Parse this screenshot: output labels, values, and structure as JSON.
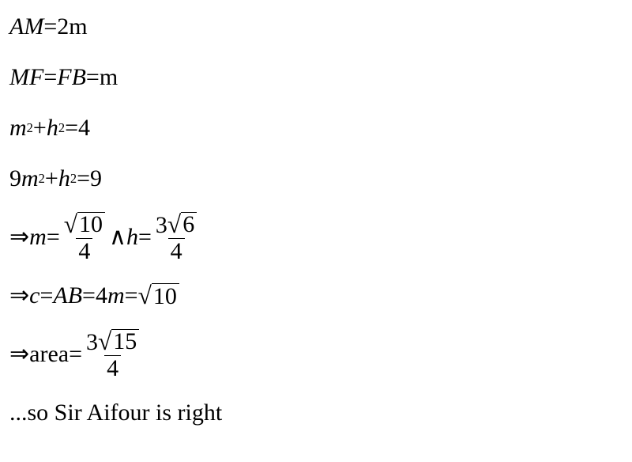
{
  "l1": {
    "lhs": "AM",
    "eq": "=",
    "rhs_num": "2",
    "rhs_unit": "m"
  },
  "l2": {
    "a": "MF",
    "eq1": "=",
    "b": "FB",
    "eq2": "=",
    "c": "m"
  },
  "l3": {
    "lhs": "m",
    "sup": "2",
    "plus": "+",
    "h": "h",
    "sup2": "2",
    "eq": "=",
    "rhs": "4"
  },
  "l4": {
    "coef": "9",
    "m": "m",
    "sup": "2",
    "plus": "+",
    "h": "h",
    "sup2": "2",
    "eq": "=",
    "rhs": "9"
  },
  "l5": {
    "arrow": "⇒ ",
    "m": "m",
    "eq1": "=",
    "f1": {
      "rad": "10",
      "den": "4"
    },
    "and": "∧",
    "h": "h",
    "eq2": "=",
    "f2": {
      "coef": "3",
      "rad": "6",
      "den": "4"
    }
  },
  "l6": {
    "arrow": "⇒ ",
    "c": "c",
    "eq1": "=",
    "AB": "AB",
    "eq2": "=",
    "four": "4",
    "m": "m",
    "eq3": "=",
    "rad": "10"
  },
  "l7": {
    "arrow": "⇒ ",
    "area": "area",
    "eq": "=",
    "f": {
      "coef": "3",
      "rad": "15",
      "den": "4"
    }
  },
  "l8": {
    "text": "...so Sir Aifour is right"
  },
  "colors": {
    "text": "#000000",
    "bg": "#ffffff"
  },
  "fontsize": 30
}
